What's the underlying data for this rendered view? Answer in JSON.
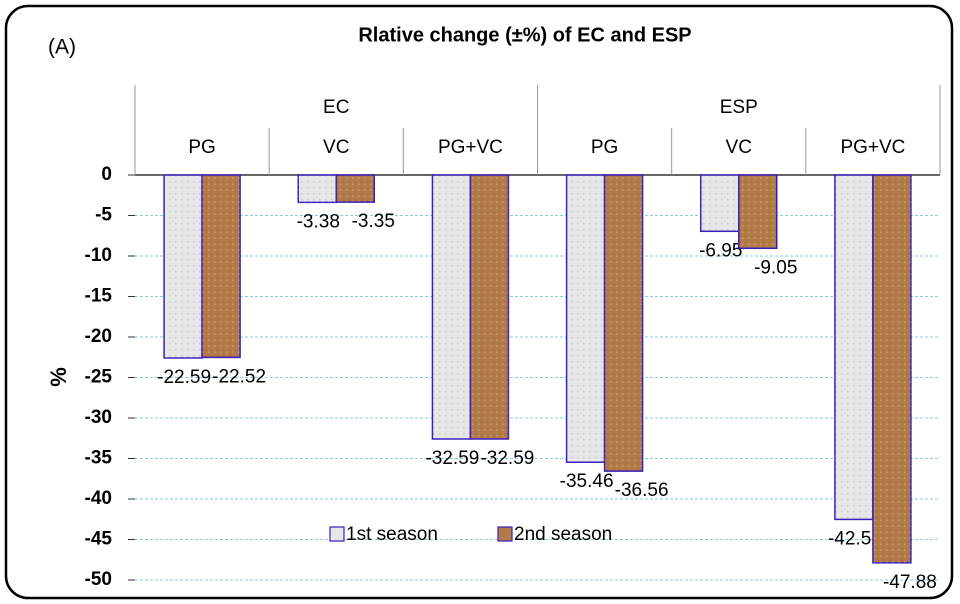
{
  "chart_data": {
    "type": "bar",
    "title": "Rlative change (±%) of EC and ESP",
    "annotation": "(A)",
    "y_label": "%",
    "groups": [
      {
        "label": "EC",
        "categories": [
          "PG",
          "VC",
          "PG+VC"
        ]
      },
      {
        "label": "ESP",
        "categories": [
          "PG",
          "VC",
          "PG+VC"
        ]
      }
    ],
    "series": [
      {
        "name": "1st season",
        "color": "#e6e6e6",
        "values": [
          -22.59,
          -3.38,
          -32.59,
          -35.46,
          -6.95,
          -42.52
        ]
      },
      {
        "name": "2nd season",
        "color": "#b27b47",
        "values": [
          -22.52,
          -3.35,
          -32.59,
          -36.56,
          -9.05,
          -47.88
        ]
      }
    ],
    "ylim": [
      -50,
      0
    ],
    "yticks": [
      0,
      -5,
      -10,
      -15,
      -20,
      -25,
      -30,
      -35,
      -40,
      -45,
      -50
    ],
    "grid": true,
    "legend": "bottom"
  }
}
